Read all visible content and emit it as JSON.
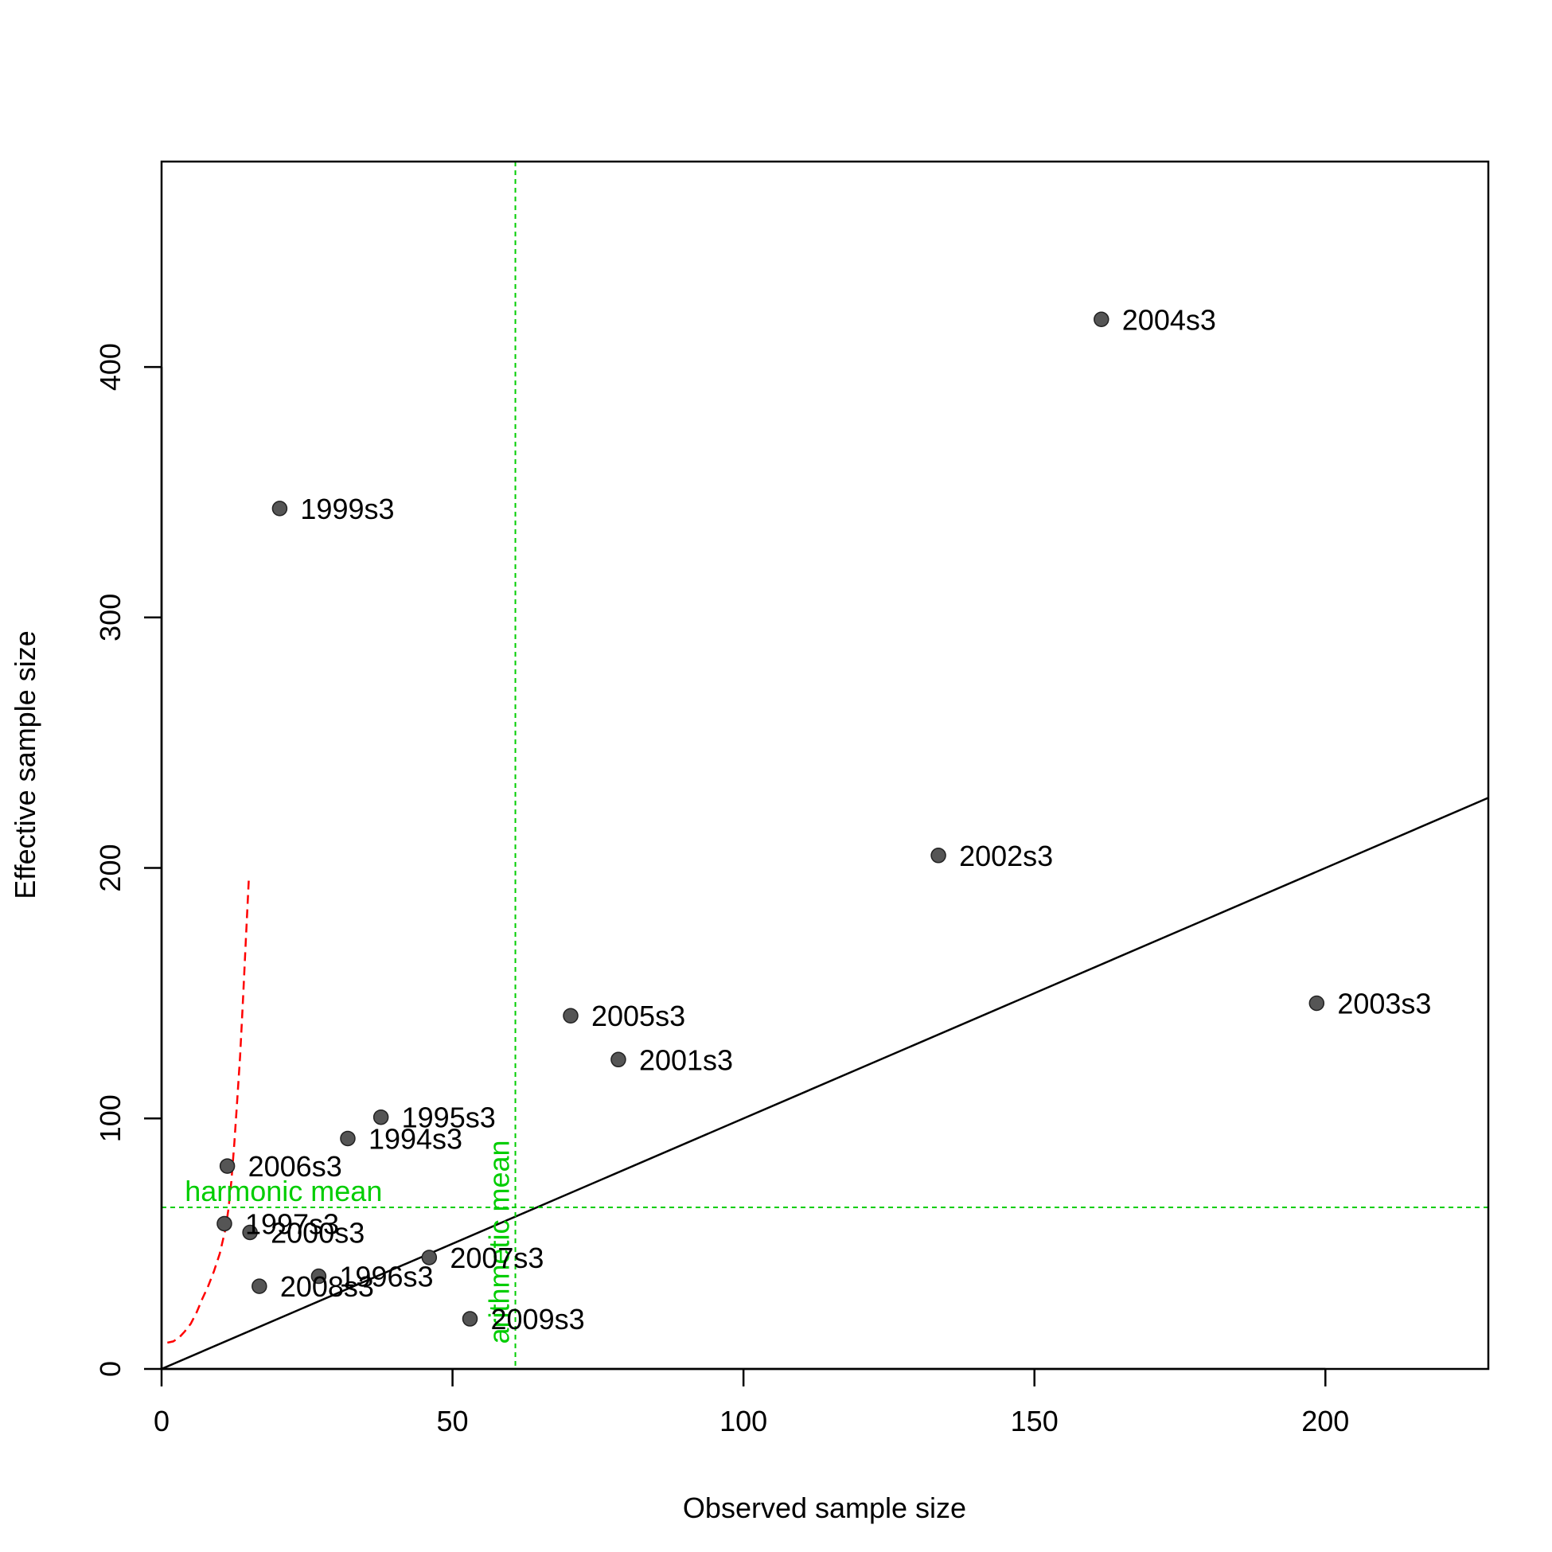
{
  "chart_data": {
    "type": "scatter",
    "title": "",
    "xlabel": "Observed sample size",
    "ylabel": "Effective sample size",
    "xlim": [
      0,
      228
    ],
    "ylim": [
      0,
      482
    ],
    "xticks": [
      0,
      50,
      100,
      150,
      200
    ],
    "yticks": [
      0,
      100,
      200,
      300,
      400
    ],
    "grid": false,
    "legend": "none",
    "point_color": "#555555",
    "points": [
      {
        "label": "1994s3",
        "x": 32,
        "y": 92
      },
      {
        "label": "1995s3",
        "x": 37.7,
        "y": 100.5
      },
      {
        "label": "1996s3",
        "x": 27,
        "y": 37
      },
      {
        "label": "1997s3",
        "x": 10.8,
        "y": 58
      },
      {
        "label": "1999s3",
        "x": 20.3,
        "y": 343.5
      },
      {
        "label": "2000s3",
        "x": 15.2,
        "y": 54.5
      },
      {
        "label": "2001s3",
        "x": 78.5,
        "y": 123.5
      },
      {
        "label": "2002s3",
        "x": 133.5,
        "y": 205
      },
      {
        "label": "2003s3",
        "x": 198.5,
        "y": 146
      },
      {
        "label": "2004s3",
        "x": 161.5,
        "y": 419
      },
      {
        "label": "2005s3",
        "x": 70.3,
        "y": 141
      },
      {
        "label": "2006s3",
        "x": 11.3,
        "y": 81
      },
      {
        "label": "2007s3",
        "x": 46,
        "y": 44.5
      },
      {
        "label": "2008s3",
        "x": 16.8,
        "y": 33
      },
      {
        "label": "2009s3",
        "x": 53,
        "y": 20
      }
    ],
    "reference_lines": {
      "identity_line": {
        "color": "#000000"
      },
      "arithmetic_mean": {
        "label": "arithmetic mean",
        "x": 60.8,
        "color": "#00cd00"
      },
      "harmonic_mean": {
        "label": "harmonic mean",
        "y": 64.5,
        "color": "#00cd00"
      },
      "harmonic_curve": {
        "color": "#ff0000",
        "x": [
          1,
          2,
          3,
          4,
          5,
          6,
          7,
          8,
          9,
          10,
          11,
          11.5,
          12,
          12.5,
          13,
          13.5,
          14,
          14.5,
          15
        ],
        "y": [
          10.5,
          11,
          12.5,
          15,
          18,
          22.5,
          28,
          33,
          39,
          46,
          56,
          64,
          75,
          90,
          107,
          125,
          148,
          172,
          196
        ]
      }
    }
  }
}
